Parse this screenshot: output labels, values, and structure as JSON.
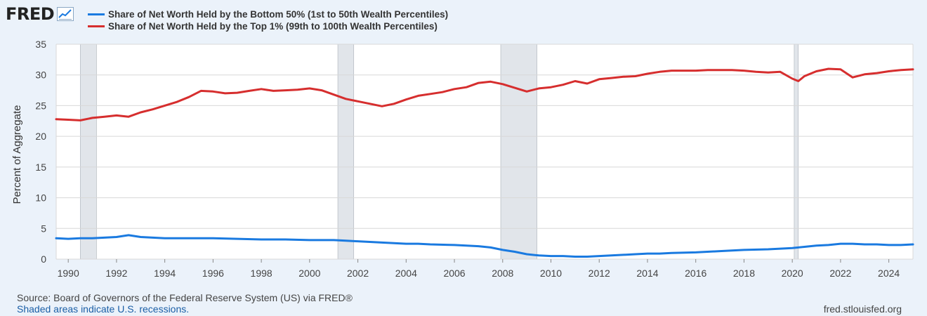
{
  "header": {
    "logo_text": "FRED",
    "logo_icon": "line-chart-icon"
  },
  "colors": {
    "background": "#ebf2fa",
    "plot_bg": "#ffffff",
    "grid": "#d8d8d8",
    "recession": "#e1e5ea",
    "series_bottom": "#1a7ae0",
    "series_top": "#d62e2e"
  },
  "chart_data": {
    "type": "line",
    "title": "",
    "xlabel": "",
    "ylabel": "Percent of Aggregate",
    "xlim": [
      1989.5,
      2025.0
    ],
    "ylim": [
      0,
      35
    ],
    "yticks": [
      "0",
      "5",
      "10",
      "15",
      "20",
      "25",
      "30",
      "35"
    ],
    "xticks": [
      "1990",
      "1992",
      "1994",
      "1996",
      "1998",
      "2000",
      "2002",
      "2004",
      "2006",
      "2008",
      "2010",
      "2012",
      "2014",
      "2016",
      "2018",
      "2020",
      "2022",
      "2024"
    ],
    "grid": true,
    "legend": "top-left",
    "recessions": [
      [
        1990.5,
        1991.17
      ],
      [
        2001.17,
        2001.83
      ],
      [
        2007.92,
        2009.42
      ],
      [
        2020.08,
        2020.25
      ]
    ],
    "series": [
      {
        "name": "Share of Net Worth Held by the Bottom 50% (1st to 50th Wealth Percentiles)",
        "color": "#1a7ae0",
        "x": [
          1989.5,
          1990,
          1990.5,
          1991,
          1991.5,
          1992,
          1992.5,
          1993,
          1993.5,
          1994,
          1995,
          1996,
          1997,
          1998,
          1999,
          2000,
          2001,
          2001.5,
          2002,
          2002.5,
          2003,
          2003.5,
          2004,
          2004.5,
          2005,
          2006,
          2007,
          2007.5,
          2008,
          2008.5,
          2009,
          2009.5,
          2010,
          2010.5,
          2011,
          2011.5,
          2012,
          2012.5,
          2013,
          2013.5,
          2014,
          2014.5,
          2015,
          2016,
          2017,
          2018,
          2019,
          2019.5,
          2020,
          2020.5,
          2021,
          2021.5,
          2022,
          2022.5,
          2023,
          2023.5,
          2024,
          2024.5,
          2025
        ],
        "y": [
          3.4,
          3.3,
          3.4,
          3.4,
          3.5,
          3.6,
          3.9,
          3.6,
          3.5,
          3.4,
          3.4,
          3.4,
          3.3,
          3.2,
          3.2,
          3.1,
          3.1,
          3.0,
          2.9,
          2.8,
          2.7,
          2.6,
          2.5,
          2.5,
          2.4,
          2.3,
          2.1,
          1.9,
          1.5,
          1.2,
          0.8,
          0.6,
          0.5,
          0.5,
          0.4,
          0.4,
          0.5,
          0.6,
          0.7,
          0.8,
          0.9,
          0.9,
          1.0,
          1.1,
          1.3,
          1.5,
          1.6,
          1.7,
          1.8,
          2.0,
          2.2,
          2.3,
          2.5,
          2.5,
          2.4,
          2.4,
          2.3,
          2.3,
          2.4
        ]
      },
      {
        "name": "Share of Net Worth Held by the Top 1% (99th to 100th Wealth Percentiles)",
        "color": "#d62e2e",
        "x": [
          1989.5,
          1990,
          1990.5,
          1991,
          1991.5,
          1992,
          1992.5,
          1993,
          1993.5,
          1994,
          1994.5,
          1995,
          1995.5,
          1996,
          1996.5,
          1997,
          1997.5,
          1998,
          1998.5,
          1999,
          1999.5,
          2000,
          2000.5,
          2001,
          2001.5,
          2002,
          2002.5,
          2003,
          2003.5,
          2004,
          2004.5,
          2005,
          2005.5,
          2006,
          2006.5,
          2007,
          2007.5,
          2008,
          2008.5,
          2009,
          2009.5,
          2010,
          2010.5,
          2011,
          2011.5,
          2012,
          2012.5,
          2013,
          2013.5,
          2014,
          2014.5,
          2015,
          2015.5,
          2016,
          2016.5,
          2017,
          2017.5,
          2018,
          2018.5,
          2019,
          2019.5,
          2020,
          2020.25,
          2020.5,
          2021,
          2021.5,
          2022,
          2022.5,
          2023,
          2023.5,
          2024,
          2024.5,
          2025
        ],
        "y": [
          22.8,
          22.7,
          22.6,
          23.0,
          23.2,
          23.4,
          23.2,
          23.9,
          24.4,
          25.0,
          25.6,
          26.4,
          27.4,
          27.3,
          27.0,
          27.1,
          27.4,
          27.7,
          27.4,
          27.5,
          27.6,
          27.8,
          27.5,
          26.8,
          26.1,
          25.7,
          25.3,
          24.9,
          25.3,
          26.0,
          26.6,
          26.9,
          27.2,
          27.7,
          28.0,
          28.7,
          28.9,
          28.5,
          27.9,
          27.3,
          27.8,
          28.0,
          28.4,
          29.0,
          28.6,
          29.3,
          29.5,
          29.7,
          29.8,
          30.2,
          30.5,
          30.7,
          30.7,
          30.7,
          30.8,
          30.8,
          30.8,
          30.7,
          30.5,
          30.4,
          30.5,
          29.4,
          29.0,
          29.8,
          30.6,
          31.0,
          30.9,
          29.6,
          30.1,
          30.3,
          30.6,
          30.8,
          30.9
        ]
      }
    ]
  },
  "footer": {
    "source": "Source: Board of Governors of the Federal Reserve System (US) via FRED®",
    "recession_note": "Shaded areas indicate U.S. recessions.",
    "site": "fred.stlouisfed.org"
  }
}
